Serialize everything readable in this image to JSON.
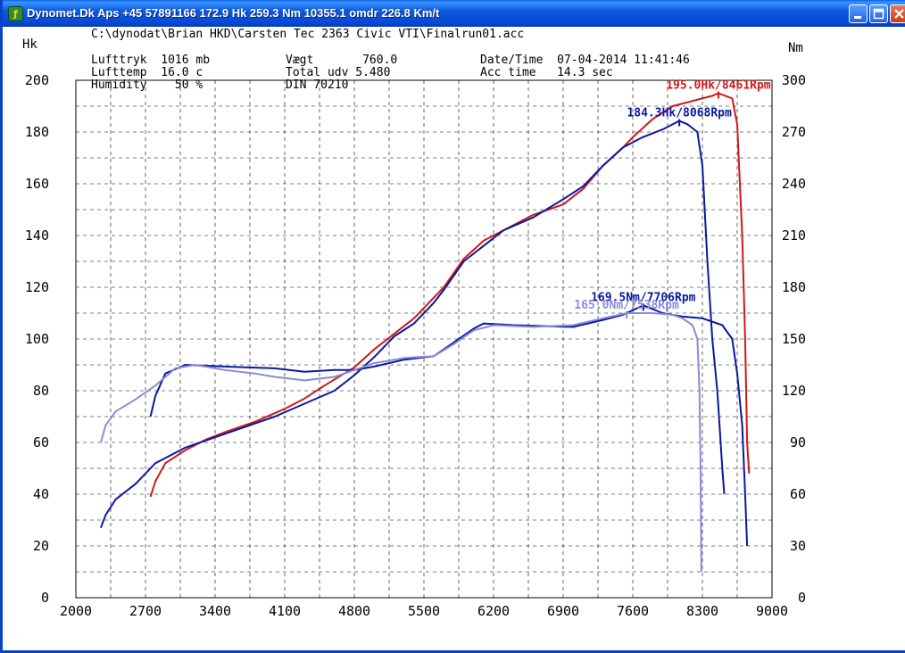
{
  "window": {
    "title": "Dynomet.Dk Aps +45 57891166  172.9 Hk 259.3 Nm 10355.1 omdr 226.8 Km/t",
    "app_icon": "dynomet-app-icon",
    "buttons": [
      {
        "name": "minimize-button",
        "icon": "minimize-icon"
      },
      {
        "name": "maximize-button",
        "icon": "maximize-icon"
      },
      {
        "name": "close-button",
        "icon": "close-icon"
      }
    ]
  },
  "header": {
    "filepath": "C:\\dynodat\\Brian HKD\\Carsten Tec 2363 Civic VTI\\Finalrun01.acc",
    "lufttryk": "Lufttryk  1016 mb",
    "lufttemp": "Lufttemp  16.0 c",
    "humidity": "Humidity    50 %",
    "vaegt": "Vægt       760.0",
    "total_udv": "Total udv 5.480",
    "din": "DIN 70210",
    "datetime": "Date/Time  07-04-2014 11:41:46",
    "acc_time": "Acc time   14.3 sec"
  },
  "chart_data": {
    "type": "line",
    "title": "",
    "xlabel": "",
    "ylabel_left": "Hk",
    "ylabel_right": "Nm",
    "xlim": [
      2000,
      9000
    ],
    "ylim_left": [
      0,
      200
    ],
    "ylim_right": [
      0,
      300
    ],
    "x_ticks": [
      "2000",
      "2700",
      "3400",
      "4100",
      "4800",
      "5500",
      "6200",
      "6900",
      "7600",
      "8300",
      "9000"
    ],
    "y_left_ticks": [
      "0",
      "20",
      "40",
      "60",
      "80",
      "100",
      "120",
      "140",
      "160",
      "180",
      "200"
    ],
    "y_right_ticks": [
      "0",
      "30",
      "60",
      "90",
      "120",
      "150",
      "180",
      "210",
      "240",
      "270",
      "300"
    ],
    "grid": true,
    "colors": {
      "red": "#d01818",
      "dark_blue": "#0a18a0",
      "light_blue": "#8a8ad8"
    },
    "series": [
      {
        "axis": "left",
        "color_key": "red",
        "points": [
          [
            2750,
            39
          ],
          [
            2800,
            45
          ],
          [
            2900,
            52
          ],
          [
            3100,
            57
          ],
          [
            3300,
            61
          ],
          [
            3500,
            64
          ],
          [
            3800,
            68
          ],
          [
            4100,
            73
          ],
          [
            4300,
            77
          ],
          [
            4500,
            82
          ],
          [
            4800,
            89
          ],
          [
            5000,
            96
          ],
          [
            5200,
            102
          ],
          [
            5400,
            108
          ],
          [
            5600,
            116
          ],
          [
            5700,
            120
          ],
          [
            5900,
            131
          ],
          [
            6100,
            138
          ],
          [
            6300,
            142
          ],
          [
            6600,
            148
          ],
          [
            6900,
            152
          ],
          [
            7100,
            158
          ],
          [
            7300,
            167
          ],
          [
            7500,
            174
          ],
          [
            7600,
            178
          ],
          [
            7800,
            185
          ],
          [
            8000,
            190
          ],
          [
            8200,
            192
          ],
          [
            8400,
            194
          ],
          [
            8461,
            195
          ],
          [
            8600,
            193
          ],
          [
            8650,
            183
          ],
          [
            8700,
            140
          ],
          [
            8730,
            100
          ],
          [
            8750,
            60
          ],
          [
            8770,
            48
          ]
        ]
      },
      {
        "axis": "left",
        "color_key": "dark_blue",
        "points": [
          [
            2250,
            27
          ],
          [
            2300,
            32
          ],
          [
            2400,
            38
          ],
          [
            2600,
            44
          ],
          [
            2800,
            52
          ],
          [
            3100,
            58
          ],
          [
            3400,
            62
          ],
          [
            3700,
            66
          ],
          [
            4000,
            70
          ],
          [
            4300,
            75
          ],
          [
            4600,
            80
          ],
          [
            4800,
            86
          ],
          [
            5000,
            93
          ],
          [
            5200,
            101
          ],
          [
            5400,
            106
          ],
          [
            5600,
            114
          ],
          [
            5700,
            119
          ],
          [
            5900,
            130
          ],
          [
            6100,
            136
          ],
          [
            6300,
            142
          ],
          [
            6600,
            147
          ],
          [
            6900,
            154
          ],
          [
            7100,
            159
          ],
          [
            7300,
            167
          ],
          [
            7500,
            174
          ],
          [
            7700,
            178
          ],
          [
            7900,
            181
          ],
          [
            8068,
            184.3
          ],
          [
            8150,
            183
          ],
          [
            8250,
            180
          ],
          [
            8300,
            167
          ],
          [
            8350,
            130
          ],
          [
            8400,
            100
          ],
          [
            8450,
            80
          ],
          [
            8500,
            50
          ],
          [
            8520,
            40
          ]
        ]
      },
      {
        "axis": "right",
        "color_key": "dark_blue",
        "points": [
          [
            2750,
            105
          ],
          [
            2800,
            117
          ],
          [
            2900,
            130
          ],
          [
            3100,
            135
          ],
          [
            3500,
            134
          ],
          [
            4000,
            133
          ],
          [
            4300,
            131
          ],
          [
            4600,
            132
          ],
          [
            4800,
            132
          ],
          [
            5000,
            134
          ],
          [
            5300,
            138
          ],
          [
            5600,
            140
          ],
          [
            5800,
            148
          ],
          [
            6000,
            156
          ],
          [
            6100,
            159
          ],
          [
            6400,
            158
          ],
          [
            7000,
            157
          ],
          [
            7300,
            161
          ],
          [
            7500,
            164
          ],
          [
            7706,
            169.5
          ],
          [
            7900,
            165
          ],
          [
            8100,
            163
          ],
          [
            8300,
            162
          ],
          [
            8500,
            158
          ],
          [
            8600,
            150
          ],
          [
            8650,
            130
          ],
          [
            8700,
            100
          ],
          [
            8730,
            60
          ],
          [
            8750,
            30
          ]
        ]
      },
      {
        "axis": "right",
        "color_key": "light_blue",
        "points": [
          [
            2250,
            90
          ],
          [
            2300,
            100
          ],
          [
            2400,
            108
          ],
          [
            2600,
            115
          ],
          [
            2800,
            123
          ],
          [
            3000,
            133
          ],
          [
            3200,
            135
          ],
          [
            3500,
            132
          ],
          [
            3800,
            130
          ],
          [
            4000,
            128
          ],
          [
            4300,
            126
          ],
          [
            4600,
            128
          ],
          [
            4800,
            132
          ],
          [
            5000,
            136
          ],
          [
            5300,
            139
          ],
          [
            5600,
            140
          ],
          [
            5800,
            147
          ],
          [
            6000,
            155
          ],
          [
            6200,
            158
          ],
          [
            6600,
            157
          ],
          [
            7000,
            158
          ],
          [
            7300,
            162
          ],
          [
            7538,
            165
          ],
          [
            7800,
            165
          ],
          [
            8000,
            164
          ],
          [
            8100,
            162
          ],
          [
            8200,
            158
          ],
          [
            8250,
            150
          ],
          [
            8270,
            120
          ],
          [
            8280,
            80
          ],
          [
            8290,
            15
          ]
        ]
      }
    ],
    "annotations": [
      {
        "text": "195.0Hk/8461Rpm",
        "color_key": "red",
        "x": 8461,
        "y": 195,
        "axis": "left"
      },
      {
        "text": "184.3Hk/8068Rpm",
        "color_key": "dark_blue",
        "x": 8068,
        "y": 184.3,
        "axis": "left"
      },
      {
        "text": "169.5Nm/7706Rpm",
        "color_key": "dark_blue",
        "x": 7706,
        "y": 169.5,
        "axis": "right"
      },
      {
        "text": "165.0Nm/7538Rpm",
        "color_key": "light_blue",
        "x": 7538,
        "y": 165,
        "axis": "right"
      }
    ]
  }
}
